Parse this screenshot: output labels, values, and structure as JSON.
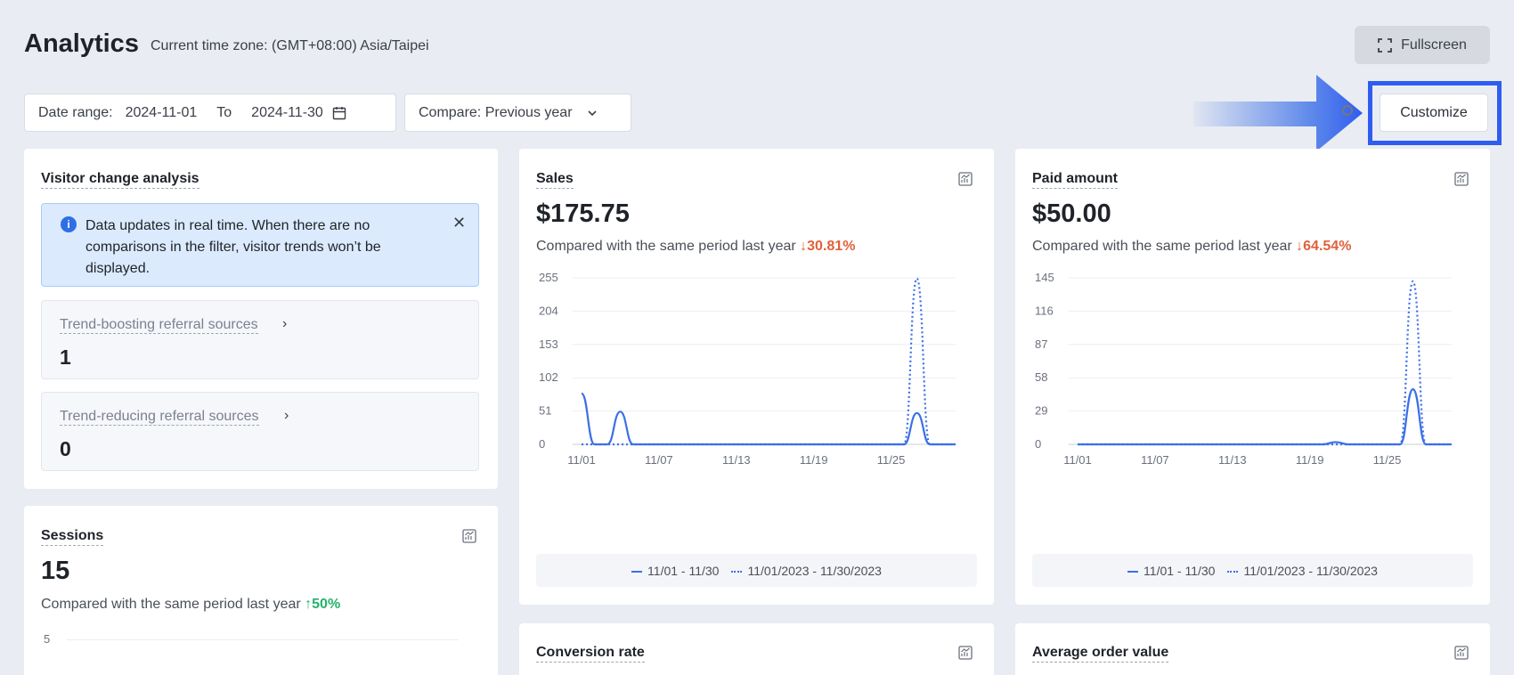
{
  "header": {
    "title": "Analytics",
    "timezone": "Current time zone: (GMT+08:00) Asia/Taipei",
    "fullscreen_label": "Fullscreen"
  },
  "filters": {
    "date_range_label": "Date range:",
    "date_from": "2024-11-01",
    "to_label": "To",
    "date_to": "2024-11-30",
    "compare_label": "Compare: Previous year",
    "customize_label": "Customize"
  },
  "visitor": {
    "title": "Visitor change analysis",
    "info_text": "Data updates in real time. When there are no comparisons in the filter, visitor trends won’t be displayed.",
    "boosting_label": "Trend-boosting referral sources",
    "boosting_value": "1",
    "reducing_label": "Trend-reducing referral sources",
    "reducing_value": "0"
  },
  "sessions": {
    "title": "Sessions",
    "value": "15",
    "compare_text": "Compared with the same period last year",
    "change": "50%",
    "first_tick": "5"
  },
  "sales": {
    "title": "Sales",
    "value": "$175.75",
    "compare_text": "Compared with the same period last year",
    "change": "30.81%",
    "legend_current": "11/01 - 11/30",
    "legend_previous": "11/01/2023 - 11/30/2023"
  },
  "paid": {
    "title": "Paid amount",
    "value": "$50.00",
    "compare_text": "Compared with the same period last year",
    "change": "64.54%",
    "legend_current": "11/01 - 11/30",
    "legend_previous": "11/01/2023 - 11/30/2023"
  },
  "conversion": {
    "title": "Conversion rate"
  },
  "aov": {
    "title": "Average order value"
  },
  "colors": {
    "accent": "#3b6fe8",
    "down": "#e0613a",
    "up": "#24b36b",
    "highlight": "#2f5cf0"
  },
  "chart_data": [
    {
      "type": "line",
      "title": "Sales",
      "x": [
        "11/01",
        "11/02",
        "11/03",
        "11/04",
        "11/05",
        "11/06",
        "11/07",
        "11/08",
        "11/09",
        "11/10",
        "11/11",
        "11/12",
        "11/13",
        "11/14",
        "11/15",
        "11/16",
        "11/17",
        "11/18",
        "11/19",
        "11/20",
        "11/21",
        "11/22",
        "11/23",
        "11/24",
        "11/25",
        "11/26",
        "11/27",
        "11/28",
        "11/29",
        "11/30"
      ],
      "x_tick_labels": [
        "11/01",
        "11/07",
        "11/13",
        "11/19",
        "11/25"
      ],
      "y_tick_labels": [
        "0",
        "51",
        "102",
        "153",
        "204",
        "255"
      ],
      "ylim": [
        0,
        255
      ],
      "series": [
        {
          "name": "11/01 - 11/30",
          "style": "solid",
          "values": [
            78,
            0,
            0,
            50,
            0,
            0,
            0,
            0,
            0,
            0,
            0,
            0,
            0,
            0,
            0,
            0,
            0,
            0,
            0,
            0,
            0,
            0,
            0,
            0,
            0,
            0,
            48,
            0,
            0,
            0
          ]
        },
        {
          "name": "11/01/2023 - 11/30/2023",
          "style": "dotted",
          "values": [
            0,
            0,
            0,
            0,
            0,
            0,
            0,
            0,
            0,
            0,
            0,
            0,
            0,
            0,
            0,
            0,
            0,
            0,
            0,
            0,
            0,
            0,
            0,
            0,
            0,
            0,
            254,
            0,
            0,
            0
          ]
        }
      ]
    },
    {
      "type": "line",
      "title": "Paid amount",
      "x": [
        "11/01",
        "11/02",
        "11/03",
        "11/04",
        "11/05",
        "11/06",
        "11/07",
        "11/08",
        "11/09",
        "11/10",
        "11/11",
        "11/12",
        "11/13",
        "11/14",
        "11/15",
        "11/16",
        "11/17",
        "11/18",
        "11/19",
        "11/20",
        "11/21",
        "11/22",
        "11/23",
        "11/24",
        "11/25",
        "11/26",
        "11/27",
        "11/28",
        "11/29",
        "11/30"
      ],
      "x_tick_labels": [
        "11/01",
        "11/07",
        "11/13",
        "11/19",
        "11/25"
      ],
      "y_tick_labels": [
        "0",
        "29",
        "58",
        "87",
        "116",
        "145"
      ],
      "ylim": [
        0,
        145
      ],
      "series": [
        {
          "name": "11/01 - 11/30",
          "style": "solid",
          "values": [
            0,
            0,
            0,
            0,
            0,
            0,
            0,
            0,
            0,
            0,
            0,
            0,
            0,
            0,
            0,
            0,
            0,
            0,
            0,
            0,
            2,
            0,
            0,
            0,
            0,
            0,
            48,
            0,
            0,
            0
          ]
        },
        {
          "name": "11/01/2023 - 11/30/2023",
          "style": "dotted",
          "values": [
            0,
            0,
            0,
            0,
            0,
            0,
            0,
            0,
            0,
            0,
            0,
            0,
            0,
            0,
            0,
            0,
            0,
            0,
            0,
            0,
            0,
            0,
            0,
            0,
            0,
            0,
            142,
            0,
            0,
            0
          ]
        }
      ]
    }
  ]
}
